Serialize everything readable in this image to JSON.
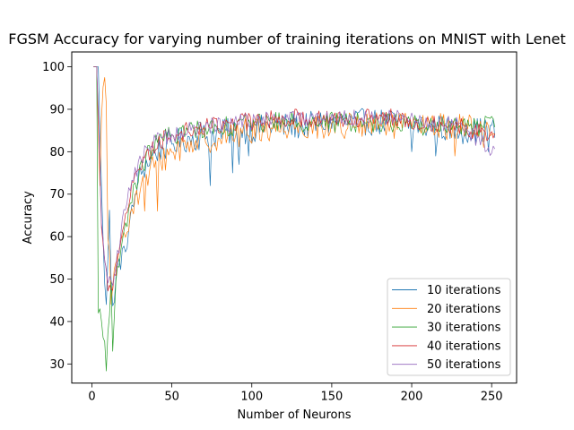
{
  "chart_data": {
    "type": "line",
    "title": "FGSM Accuracy for varying number of training iterations on MNIST with Lenet",
    "xlabel": "Number of Neurons",
    "ylabel": "Accuracy",
    "xlim": [
      -12.6,
      265.6
    ],
    "ylim": [
      25.5,
      103.5
    ],
    "xticks": [
      0,
      50,
      100,
      150,
      200,
      250
    ],
    "yticks": [
      30,
      40,
      50,
      60,
      70,
      80,
      90,
      100
    ],
    "grid": false,
    "legend_position": "lower-right",
    "x_range": [
      1,
      252
    ],
    "series": [
      {
        "name": "10 iterations",
        "color": "#1f77b4",
        "anchors": [
          [
            1,
            100
          ],
          [
            4,
            100
          ],
          [
            6,
            72
          ],
          [
            7,
            60
          ],
          [
            8,
            50
          ],
          [
            9,
            45
          ],
          [
            10,
            55
          ],
          [
            11,
            65
          ],
          [
            12,
            48
          ],
          [
            14,
            45
          ],
          [
            16,
            52
          ],
          [
            18,
            55
          ],
          [
            20,
            55
          ],
          [
            22,
            60
          ],
          [
            25,
            65
          ],
          [
            28,
            72
          ],
          [
            32,
            76
          ],
          [
            36,
            78
          ],
          [
            40,
            80
          ],
          [
            50,
            82
          ],
          [
            60,
            83
          ],
          [
            75,
            84
          ],
          [
            90,
            85
          ],
          [
            100,
            85
          ],
          [
            110,
            86
          ],
          [
            130,
            86
          ],
          [
            150,
            87
          ],
          [
            170,
            87
          ],
          [
            190,
            87
          ],
          [
            210,
            86
          ],
          [
            230,
            85
          ],
          [
            252,
            85
          ]
        ],
        "noise": 3.2,
        "dips": [
          [
            74,
            72
          ],
          [
            88,
            75
          ],
          [
            92,
            77
          ],
          [
            98,
            79
          ],
          [
            200,
            80
          ],
          [
            215,
            79
          ],
          [
            248,
            80
          ]
        ]
      },
      {
        "name": "20 iterations",
        "color": "#ff7f0e",
        "anchors": [
          [
            1,
            100
          ],
          [
            3,
            100
          ],
          [
            4,
            85
          ],
          [
            5,
            72
          ],
          [
            6,
            88
          ],
          [
            7,
            95
          ],
          [
            8,
            98.5
          ],
          [
            9,
            90
          ],
          [
            10,
            60
          ],
          [
            11,
            55
          ],
          [
            12,
            42
          ],
          [
            14,
            50
          ],
          [
            16,
            53
          ],
          [
            18,
            60
          ],
          [
            20,
            62
          ],
          [
            24,
            65
          ],
          [
            28,
            70
          ],
          [
            32,
            72
          ],
          [
            36,
            75
          ],
          [
            40,
            77
          ],
          [
            50,
            80
          ],
          [
            60,
            82
          ],
          [
            75,
            83
          ],
          [
            90,
            84
          ],
          [
            100,
            85
          ],
          [
            120,
            86
          ],
          [
            150,
            86
          ],
          [
            170,
            86
          ],
          [
            190,
            86
          ],
          [
            210,
            86
          ],
          [
            230,
            86
          ],
          [
            252,
            85
          ]
        ],
        "noise": 3.2,
        "dips": [
          [
            33,
            66
          ],
          [
            41,
            66
          ],
          [
            227,
            79
          ],
          [
            245,
            81
          ]
        ]
      },
      {
        "name": "30 iterations",
        "color": "#2ca02c",
        "anchors": [
          [
            1,
            100
          ],
          [
            3,
            100
          ],
          [
            4,
            42
          ],
          [
            5,
            43
          ],
          [
            6,
            40
          ],
          [
            7,
            37
          ],
          [
            8,
            36
          ],
          [
            9,
            29
          ],
          [
            10,
            38
          ],
          [
            11,
            40
          ],
          [
            12,
            48
          ],
          [
            14,
            42
          ],
          [
            16,
            52
          ],
          [
            18,
            55
          ],
          [
            20,
            60
          ],
          [
            24,
            68
          ],
          [
            28,
            73
          ],
          [
            32,
            77
          ],
          [
            36,
            80
          ],
          [
            40,
            82
          ],
          [
            50,
            84
          ],
          [
            60,
            85
          ],
          [
            75,
            86
          ],
          [
            90,
            86
          ],
          [
            100,
            87
          ],
          [
            120,
            87
          ],
          [
            150,
            87
          ],
          [
            170,
            87
          ],
          [
            190,
            87
          ],
          [
            210,
            86
          ],
          [
            230,
            86
          ],
          [
            252,
            86
          ]
        ],
        "noise": 2.4,
        "dips": [
          [
            13,
            33
          ]
        ]
      },
      {
        "name": "40 iterations",
        "color": "#d62728",
        "anchors": [
          [
            1,
            100
          ],
          [
            3,
            100
          ],
          [
            4,
            88
          ],
          [
            6,
            62
          ],
          [
            8,
            55
          ],
          [
            10,
            48
          ],
          [
            12,
            46
          ],
          [
            14,
            50
          ],
          [
            16,
            55
          ],
          [
            18,
            60
          ],
          [
            20,
            64
          ],
          [
            24,
            70
          ],
          [
            28,
            75
          ],
          [
            32,
            78
          ],
          [
            36,
            80
          ],
          [
            40,
            82
          ],
          [
            50,
            84
          ],
          [
            60,
            85
          ],
          [
            75,
            86
          ],
          [
            90,
            87
          ],
          [
            100,
            87
          ],
          [
            120,
            88
          ],
          [
            150,
            88
          ],
          [
            170,
            88
          ],
          [
            190,
            88
          ],
          [
            210,
            87
          ],
          [
            230,
            86
          ],
          [
            252,
            84
          ]
        ],
        "noise": 2.2,
        "dips": []
      },
      {
        "name": "50 iterations",
        "color": "#9467bd",
        "anchors": [
          [
            1,
            100
          ],
          [
            3,
            100
          ],
          [
            4,
            90
          ],
          [
            6,
            63
          ],
          [
            8,
            55
          ],
          [
            10,
            50
          ],
          [
            12,
            48
          ],
          [
            14,
            52
          ],
          [
            16,
            56
          ],
          [
            18,
            60
          ],
          [
            20,
            66
          ],
          [
            24,
            72
          ],
          [
            28,
            76
          ],
          [
            32,
            79
          ],
          [
            36,
            81
          ],
          [
            40,
            83
          ],
          [
            50,
            84
          ],
          [
            60,
            85
          ],
          [
            75,
            86
          ],
          [
            90,
            87
          ],
          [
            100,
            87
          ],
          [
            120,
            88
          ],
          [
            150,
            88
          ],
          [
            170,
            88
          ],
          [
            190,
            88
          ],
          [
            210,
            87
          ],
          [
            230,
            86
          ],
          [
            252,
            80
          ]
        ],
        "noise": 2.0,
        "dips": []
      }
    ]
  }
}
